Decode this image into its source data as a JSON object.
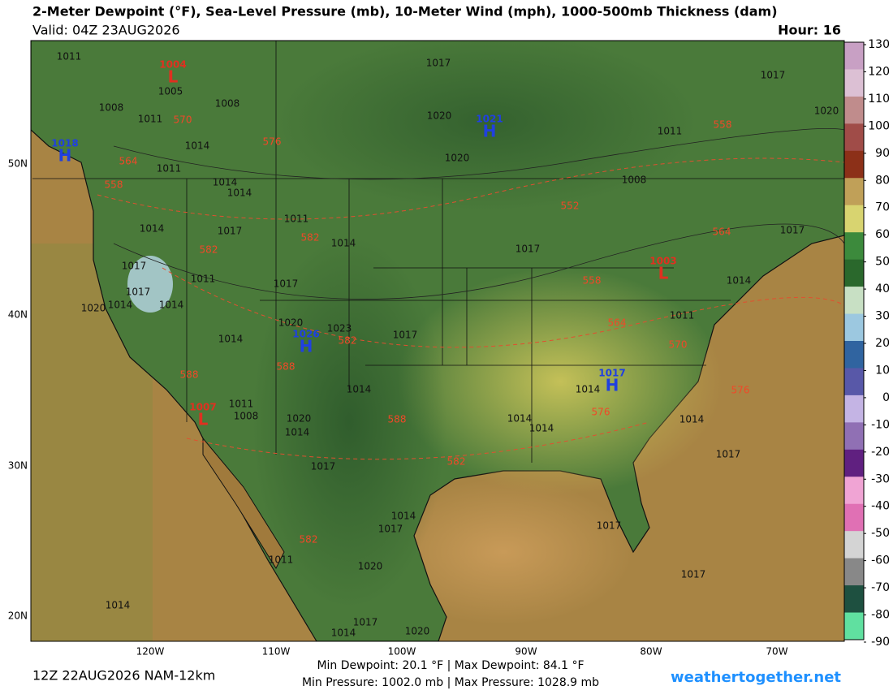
{
  "header": {
    "title": "2-Meter Dewpoint (°F), Sea-Level Pressure (mb), 10-Meter Wind (mph), 1000-500mb Thickness (dam)",
    "valid": "Valid: 04Z 23AUG2026",
    "hour": "Hour: 16"
  },
  "colorbar": {
    "ticks": [
      130,
      120,
      110,
      100,
      90,
      80,
      70,
      60,
      50,
      40,
      30,
      20,
      10,
      0,
      -10,
      -20,
      -30,
      -40,
      -50,
      -60,
      -70,
      -80,
      -90
    ],
    "colors": [
      "#c8a0c4",
      "#dcc0d4",
      "#c08c8c",
      "#a04c48",
      "#8c3018",
      "#c0a058",
      "#d8d470",
      "#3c8a3c",
      "#2a682c",
      "#c8e0c4",
      "#9cc8e0",
      "#3064a0",
      "#5858a8",
      "#c4b4e4",
      "#9070b4",
      "#602080",
      "#f0a4d4",
      "#e070b4",
      "#d4d4d4",
      "#888888",
      "#1e5040",
      "#60e0a0"
    ]
  },
  "axes": {
    "lon": [
      "120W",
      "110W",
      "100W",
      "90W",
      "80W",
      "70W"
    ],
    "lat": [
      "50N",
      "40N",
      "30N",
      "20N"
    ]
  },
  "centers": [
    {
      "letter": "L",
      "value": "1004"
    },
    {
      "letter": "H",
      "value": "1018"
    },
    {
      "letter": "H",
      "value": "1021"
    },
    {
      "letter": "L",
      "value": "1007"
    },
    {
      "letter": "H",
      "value": "1026"
    },
    {
      "letter": "H",
      "value": "1017"
    },
    {
      "letter": "L",
      "value": "1003"
    }
  ],
  "isobars": [
    "1011",
    "1005",
    "1008",
    "1008",
    "1011",
    "1014",
    "1011",
    "1014",
    "1014",
    "1014",
    "1017",
    "1011",
    "1014",
    "1017",
    "1011",
    "1017",
    "1017",
    "1014",
    "1020",
    "1014",
    "1014",
    "1020",
    "1023",
    "1017",
    "1011",
    "1008",
    "1020",
    "1014",
    "1014",
    "1017",
    "1011",
    "1014",
    "1020",
    "1017",
    "1014",
    "1014",
    "1017",
    "1020",
    "1017",
    "1020",
    "1020",
    "1017",
    "1008",
    "1011",
    "1017",
    "1020",
    "1017",
    "1014",
    "1011",
    "1014",
    "1014",
    "1014",
    "1014",
    "1017",
    "1017",
    "1017"
  ],
  "thickness": [
    "570",
    "576",
    "564",
    "558",
    "582",
    "582",
    "552",
    "558",
    "564",
    "558",
    "564",
    "570",
    "582",
    "588",
    "588",
    "588",
    "582",
    "576",
    "576",
    "582"
  ],
  "footer": {
    "run": "12Z 22AUG2026 NAM-12km",
    "dewpoint": "Min Dewpoint:  20.1 °F | Max Dewpoint:  84.1 °F",
    "pressure": "Min Pressure: 1002.0 mb | Max Pressure: 1028.9 mb",
    "site": "weathertogether.net"
  }
}
